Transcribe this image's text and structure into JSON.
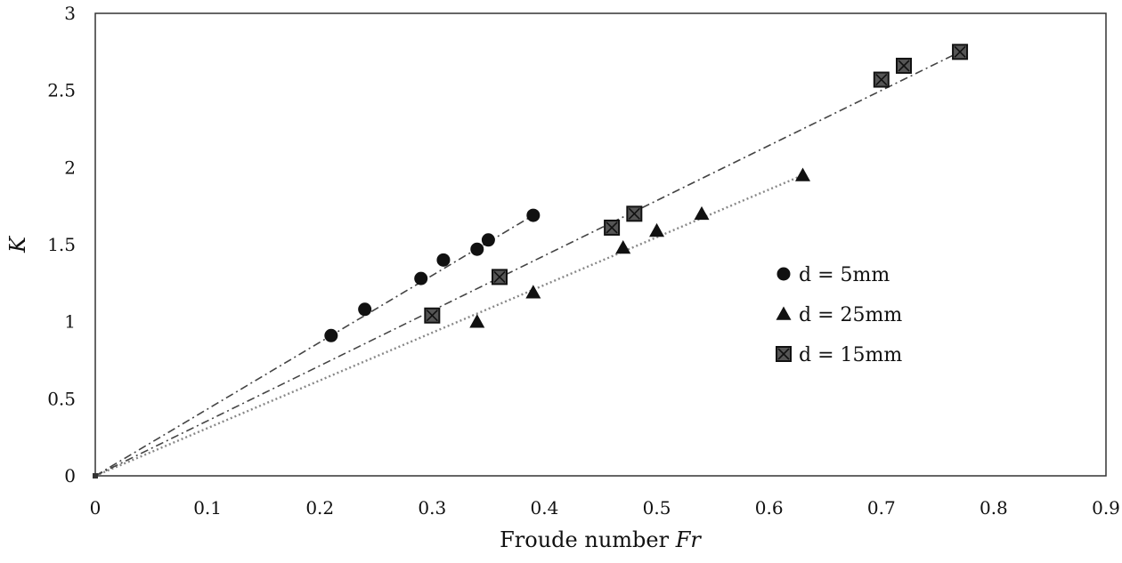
{
  "chart_data": {
    "type": "scatter",
    "title": "",
    "xlabel": "Froude number",
    "xlabel_italic": "Fr",
    "ylabel": "K",
    "xlim": [
      0,
      0.9
    ],
    "ylim": [
      0,
      3
    ],
    "xticks": [
      "0",
      "0.1",
      "0.2",
      "0.3",
      "0.4",
      "0.5",
      "0.6",
      "0.7",
      "0.8",
      "0.9"
    ],
    "yticks": [
      "0",
      "0.5",
      "1",
      "1.5",
      "2",
      "2.5",
      "3"
    ],
    "grid": false,
    "legend_position": "right",
    "series": [
      {
        "name": "d = 5mm",
        "marker": "circle",
        "trendline": "dash-dot",
        "x": [
          0.21,
          0.24,
          0.29,
          0.31,
          0.34,
          0.35,
          0.39
        ],
        "y": [
          0.91,
          1.08,
          1.28,
          1.4,
          1.47,
          1.53,
          1.69
        ]
      },
      {
        "name": "d = 25mm",
        "marker": "triangle",
        "trendline": "dotted",
        "x": [
          0.34,
          0.39,
          0.47,
          0.5,
          0.54,
          0.63
        ],
        "y": [
          1.0,
          1.19,
          1.48,
          1.59,
          1.7,
          1.95
        ]
      },
      {
        "name": "d = 15mm",
        "marker": "square-x",
        "trendline": "dash-dot",
        "x": [
          0.3,
          0.36,
          0.46,
          0.48,
          0.7,
          0.72,
          0.77
        ],
        "y": [
          1.04,
          1.29,
          1.61,
          1.7,
          2.57,
          2.66,
          2.75
        ]
      }
    ],
    "origin_point": {
      "x": 0,
      "y": 0
    }
  }
}
